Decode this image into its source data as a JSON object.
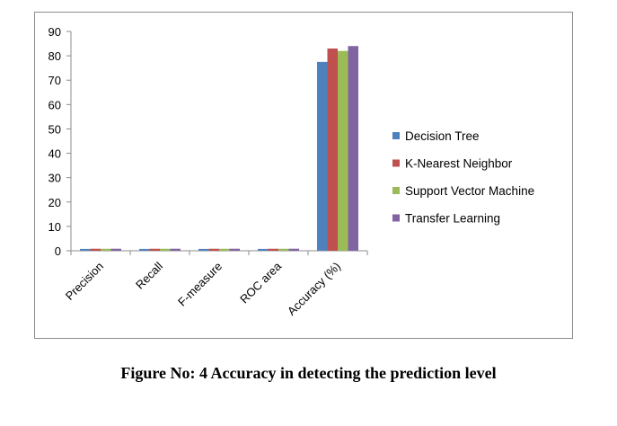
{
  "chart_data": {
    "type": "bar",
    "categories": [
      "Precision",
      "Recall",
      "F-measure",
      "ROC area",
      "Accuracy (%)"
    ],
    "series": [
      {
        "name": "Decision Tree",
        "color": "#4f81bd",
        "values": [
          0.77,
          0.77,
          0.77,
          0.77,
          77.5
        ]
      },
      {
        "name": "K-Nearest Neighbor",
        "color": "#c0504d",
        "values": [
          0.83,
          0.83,
          0.83,
          0.83,
          83.0
        ]
      },
      {
        "name": "Support Vector Machine",
        "color": "#9bbb59",
        "values": [
          0.82,
          0.82,
          0.82,
          0.82,
          82.0
        ]
      },
      {
        "name": "Transfer Learning",
        "color": "#8064a2",
        "values": [
          0.84,
          0.84,
          0.84,
          0.84,
          84.0
        ]
      }
    ],
    "yticks": [
      0,
      10,
      20,
      30,
      40,
      50,
      60,
      70,
      80,
      90
    ],
    "ylim": [
      0,
      90
    ],
    "grid": false,
    "legend": "right"
  },
  "caption": "Figure No: 4 Accuracy in detecting the prediction level"
}
